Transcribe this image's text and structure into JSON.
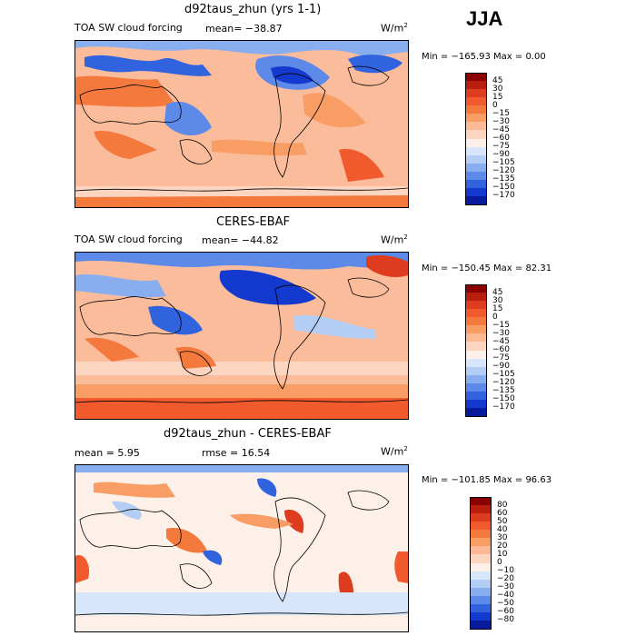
{
  "season": "JJA",
  "panels": [
    {
      "title": "d92taus_zhun (yrs 1-1)",
      "variable": "TOA SW cloud forcing",
      "stat_text": "mean= −38.87",
      "units": "W/m",
      "units_exp": "2",
      "minmax": "Min = −165.93 Max =    0.00",
      "colorbar": {
        "levels": [
          "45",
          "30",
          "15",
          "0",
          "−15",
          "−30",
          "−45",
          "−60",
          "−75",
          "−90",
          "−105",
          "−120",
          "−135",
          "−150",
          "−170"
        ],
        "colors": [
          "#8b0000",
          "#b81f0f",
          "#dd3d1e",
          "#f05a2c",
          "#f4793d",
          "#f89d64",
          "#fbb996",
          "#fcd5c0",
          "#fdf0e8",
          "#d7e6fb",
          "#b3cdf5",
          "#89aef0",
          "#5d8ae9",
          "#3163df",
          "#1439cf",
          "#081b9c"
        ]
      },
      "chart_data": {
        "type": "heatmap",
        "title": "d92taus_zhun (yrs 1-1)",
        "subtitle": "TOA SW cloud forcing",
        "mean": -38.87,
        "min": -165.93,
        "max": 0.0,
        "units": "W/m^2",
        "season": "JJA",
        "contour_levels": [
          45,
          30,
          15,
          0,
          -15,
          -30,
          -45,
          -60,
          -75,
          -90,
          -105,
          -120,
          -135,
          -150,
          -170
        ]
      }
    },
    {
      "title": "CERES-EBAF",
      "variable": "TOA SW cloud forcing",
      "stat_text": "mean= −44.82",
      "units": "W/m",
      "units_exp": "2",
      "minmax": "Min = −150.45 Max =  82.31",
      "colorbar": {
        "levels": [
          "45",
          "30",
          "15",
          "0",
          "−15",
          "−30",
          "−45",
          "−60",
          "−75",
          "−90",
          "−105",
          "−120",
          "−135",
          "−150",
          "−170"
        ],
        "colors": [
          "#8b0000",
          "#b81f0f",
          "#dd3d1e",
          "#f05a2c",
          "#f4793d",
          "#f89d64",
          "#fbb996",
          "#fcd5c0",
          "#fdf0e8",
          "#d7e6fb",
          "#b3cdf5",
          "#89aef0",
          "#5d8ae9",
          "#3163df",
          "#1439cf",
          "#081b9c"
        ]
      },
      "chart_data": {
        "type": "heatmap",
        "title": "CERES-EBAF",
        "subtitle": "TOA SW cloud forcing",
        "mean": -44.82,
        "min": -150.45,
        "max": 82.31,
        "units": "W/m^2",
        "season": "JJA",
        "contour_levels": [
          45,
          30,
          15,
          0,
          -15,
          -30,
          -45,
          -60,
          -75,
          -90,
          -105,
          -120,
          -135,
          -150,
          -170
        ]
      }
    },
    {
      "title": "d92taus_zhun - CERES-EBAF",
      "variable": "",
      "stat_text": "mean =    5.95",
      "stat_text2": "rmse =   16.54",
      "units": "W/m",
      "units_exp": "2",
      "minmax": "Min = −101.85 Max =  96.63",
      "colorbar": {
        "levels": [
          "80",
          "60",
          "50",
          "40",
          "30",
          "20",
          "10",
          "0",
          "−10",
          "−20",
          "−30",
          "−40",
          "−50",
          "−60",
          "−80"
        ],
        "colors": [
          "#8b0000",
          "#b81f0f",
          "#dd3d1e",
          "#f05a2c",
          "#f4793d",
          "#f89d64",
          "#fbb996",
          "#fcd5c0",
          "#fdf0e8",
          "#d7e6fb",
          "#b3cdf5",
          "#89aef0",
          "#5d8ae9",
          "#3163df",
          "#1439cf",
          "#081b9c"
        ]
      },
      "chart_data": {
        "type": "heatmap",
        "title": "d92taus_zhun - CERES-EBAF",
        "mean": 5.95,
        "rmse": 16.54,
        "min": -101.85,
        "max": 96.63,
        "units": "W/m^2",
        "season": "JJA",
        "contour_levels": [
          80,
          60,
          50,
          40,
          30,
          20,
          10,
          0,
          -10,
          -20,
          -30,
          -40,
          -50,
          -60,
          -80
        ]
      }
    }
  ]
}
